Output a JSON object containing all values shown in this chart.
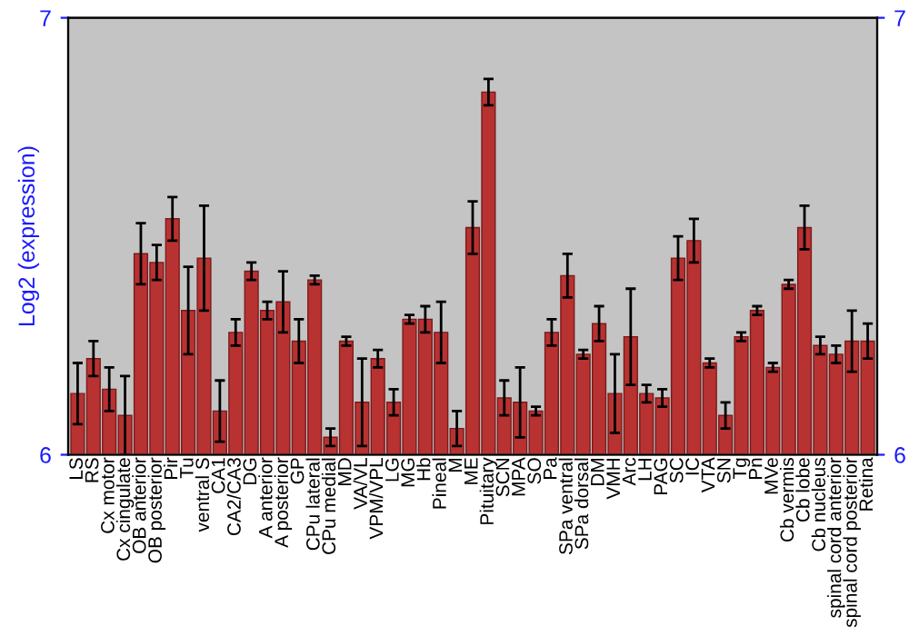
{
  "chart_data": {
    "type": "bar",
    "ylabel": "Log2 (expression)",
    "categories": [
      "LS",
      "RS",
      "Cx motor",
      "Cx cingulate",
      "OB anterior",
      "OB posterior",
      "Pir",
      "Tu",
      "ventral S",
      "CA1",
      "CA2/CA3",
      "DG",
      "A anterior",
      "A posterior",
      "GP",
      "CPu lateral",
      "CPu medial",
      "MD",
      "VA/VL",
      "VPM/VPL",
      "LG",
      "MG",
      "Hb",
      "Pineal",
      "M",
      "ME",
      "Pituitary",
      "SCN",
      "MPA",
      "SO",
      "Pa",
      "SPa ventral",
      "SPa dorsal",
      "DM",
      "VMH",
      "Arc",
      "LH",
      "PAG",
      "SC",
      "IC",
      "VTA",
      "SN",
      "Tg",
      "Pn",
      "MVe",
      "Cb vermis",
      "Cb lobe",
      "Cb nucleus",
      "spinal cord anterior",
      "spinal cord posterior",
      "Retina"
    ],
    "values": [
      6.14,
      6.22,
      6.15,
      6.09,
      6.46,
      6.44,
      6.54,
      6.33,
      6.45,
      6.1,
      6.28,
      6.42,
      6.33,
      6.35,
      6.26,
      6.4,
      6.04,
      6.26,
      6.12,
      6.22,
      6.12,
      6.31,
      6.31,
      6.28,
      6.06,
      6.52,
      6.83,
      6.13,
      6.12,
      6.1,
      6.28,
      6.41,
      6.23,
      6.3,
      6.14,
      6.27,
      6.14,
      6.13,
      6.45,
      6.49,
      6.21,
      6.09,
      6.27,
      6.33,
      6.2,
      6.39,
      6.52,
      6.25,
      6.23,
      6.26,
      6.26
    ],
    "errors": [
      0.07,
      0.04,
      0.05,
      0.09,
      0.07,
      0.04,
      0.05,
      0.1,
      0.12,
      0.07,
      0.03,
      0.02,
      0.02,
      0.07,
      0.05,
      0.01,
      0.02,
      0.01,
      0.1,
      0.02,
      0.03,
      0.01,
      0.03,
      0.07,
      0.04,
      0.06,
      0.03,
      0.04,
      0.08,
      0.01,
      0.03,
      0.05,
      0.01,
      0.04,
      0.09,
      0.11,
      0.02,
      0.02,
      0.05,
      0.05,
      0.01,
      0.03,
      0.01,
      0.01,
      0.01,
      0.01,
      0.05,
      0.02,
      0.02,
      0.07,
      0.04
    ],
    "color": "#b83232",
    "ylim": [
      6,
      7
    ],
    "yticks": [
      6,
      7
    ],
    "y2lim": [
      6,
      7
    ],
    "y2ticks": [
      6,
      7
    ],
    "grid": false,
    "legend": false
  }
}
